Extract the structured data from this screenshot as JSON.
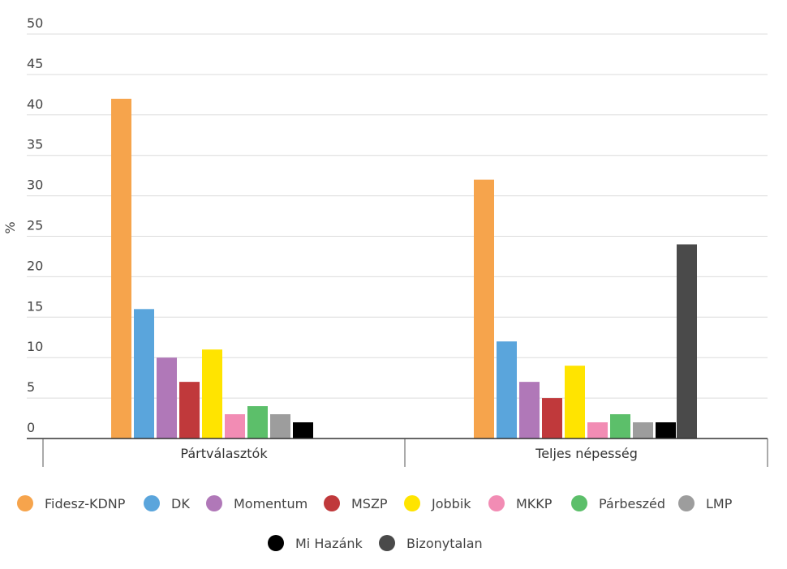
{
  "chart_data": {
    "type": "bar",
    "ylabel": "%",
    "ylim": [
      0,
      50
    ],
    "yticks": [
      0,
      5,
      10,
      15,
      20,
      25,
      30,
      35,
      40,
      45,
      50
    ],
    "grid": true,
    "legend_position": "bottom",
    "categories": [
      "Pártválasztók",
      "Teljes népesség"
    ],
    "series": [
      {
        "name": "Fidesz-KDNP",
        "color": "#f6a44c",
        "values": [
          42,
          32
        ]
      },
      {
        "name": "DK",
        "color": "#5aa5dc",
        "values": [
          16,
          12
        ]
      },
      {
        "name": "Momentum",
        "color": "#b078b8",
        "values": [
          10,
          7
        ]
      },
      {
        "name": "MSZP",
        "color": "#c0393b",
        "values": [
          7,
          5
        ]
      },
      {
        "name": "Jobbik",
        "color": "#ffe400",
        "values": [
          11,
          9
        ]
      },
      {
        "name": "MKKP",
        "color": "#f28cb4",
        "values": [
          3,
          2
        ]
      },
      {
        "name": "Párbeszéd",
        "color": "#5cbf6a",
        "values": [
          4,
          3
        ]
      },
      {
        "name": "LMP",
        "color": "#9d9d9d",
        "values": [
          3,
          2
        ]
      },
      {
        "name": "Mi Hazánk",
        "color": "#000000",
        "values": [
          2,
          2
        ]
      },
      {
        "name": "Bizonytalan",
        "color": "#4a4a4a",
        "values": [
          null,
          24
        ]
      }
    ]
  }
}
